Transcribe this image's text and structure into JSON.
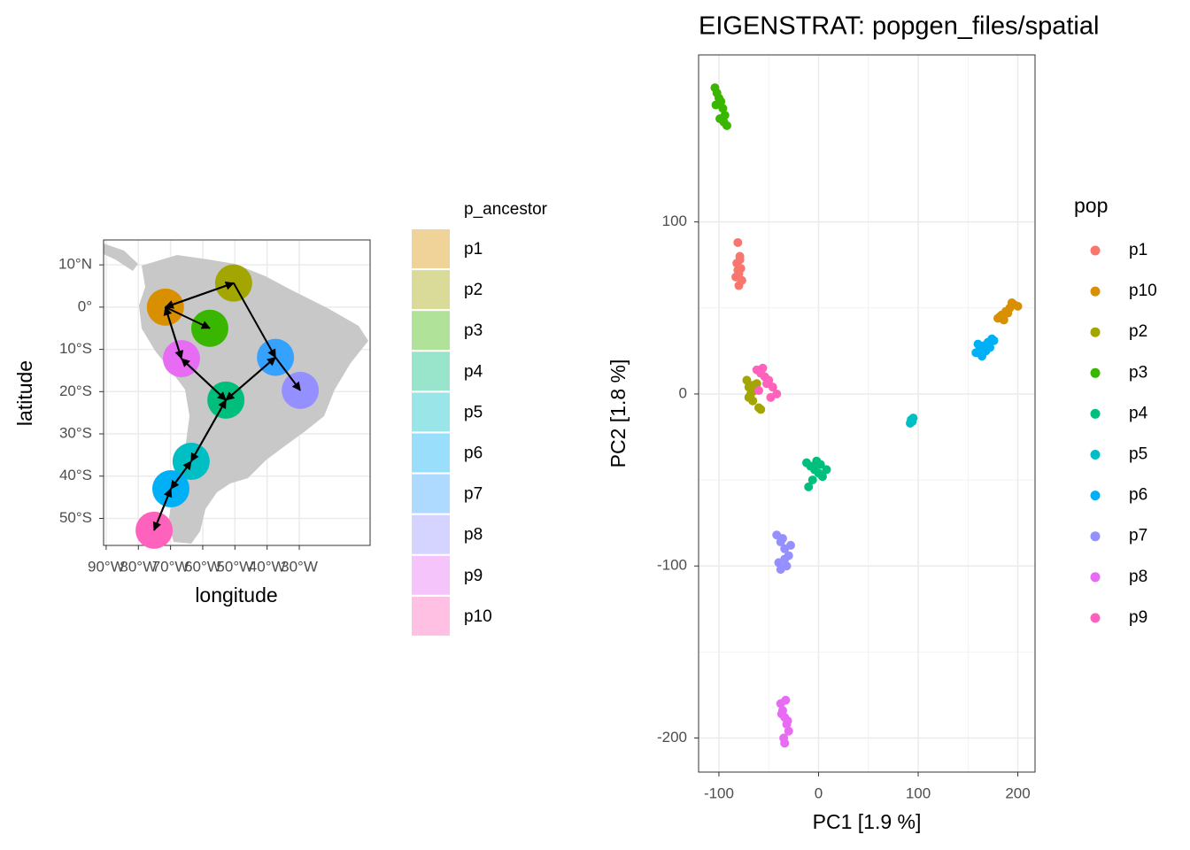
{
  "chart_data": [
    {
      "type": "map",
      "xlabel": "longitude",
      "ylabel": "latitude",
      "legend_title": "p_ancestor",
      "categories": [
        "p1",
        "p2",
        "p3",
        "p4",
        "p5",
        "p6",
        "p7",
        "p8",
        "p9",
        "p10"
      ],
      "x": [
        -71.6,
        -50.4,
        -57.8,
        -52.8,
        -63.6,
        -69.9,
        -37.4,
        -29.7,
        -66.6,
        -75.1
      ],
      "values": [
        0,
        5.7,
        -5,
        -22,
        -36.5,
        -43,
        -11.9,
        -19.7,
        -12.2,
        -52.8
      ],
      "colors": [
        "#D89000",
        "#A3A500",
        "#39B600",
        "#00BF7D",
        "#00BFC4",
        "#00B0F6",
        "#35A2FF",
        "#9590FF",
        "#E76BF3",
        "#FF62BC"
      ],
      "arrows": [
        [
          0,
          1
        ],
        [
          1,
          0
        ],
        [
          0,
          2
        ],
        [
          8,
          0
        ],
        [
          0,
          8
        ],
        [
          8,
          3
        ],
        [
          3,
          8
        ],
        [
          6,
          3
        ],
        [
          3,
          6
        ],
        [
          1,
          6
        ],
        [
          6,
          7
        ],
        [
          3,
          4
        ],
        [
          4,
          3
        ],
        [
          4,
          5
        ],
        [
          5,
          4
        ],
        [
          5,
          9
        ],
        [
          9,
          5
        ]
      ],
      "xlim": [
        -90.8,
        -8
      ],
      "ylim": [
        -56.4,
        15.9
      ],
      "xticks": [
        {
          "value": -90,
          "label": "90°W"
        },
        {
          "value": -80,
          "label": "80°W"
        },
        {
          "value": -70,
          "label": "70°W"
        },
        {
          "value": -60,
          "label": "60°W"
        },
        {
          "value": -50,
          "label": "50°W"
        },
        {
          "value": -40,
          "label": "40°W"
        },
        {
          "value": -30,
          "label": "30°W"
        }
      ],
      "yticks": [
        {
          "value": 10,
          "label": "10°N"
        },
        {
          "value": 0,
          "label": "0°"
        },
        {
          "value": -10,
          "label": "10°S"
        },
        {
          "value": -20,
          "label": "20°S"
        },
        {
          "value": -30,
          "label": "30°S"
        },
        {
          "value": -40,
          "label": "40°S"
        },
        {
          "value": -50,
          "label": "50°S"
        }
      ],
      "grid": true
    },
    {
      "type": "scatter",
      "title": "EIGENSTRAT: popgen_files/spatial",
      "xlabel": "PC1 [1.9 %]",
      "ylabel": "PC2 [1.8 %]",
      "legend_title": "pop",
      "xlim": [
        -120.4,
        217.3
      ],
      "ylim": [
        -219.8,
        197.1
      ],
      "xticks": [
        -100,
        0,
        100,
        200
      ],
      "yticks": [
        -200,
        -100,
        0,
        100
      ],
      "grid": true,
      "minor_grid": true,
      "series": [
        {
          "name": "p1",
          "color": "#F8766D",
          "x": [
            -81,
            -79,
            -82,
            -78,
            -80,
            -83,
            -77,
            -80,
            -79,
            -81
          ],
          "values": [
            88,
            80,
            76,
            73,
            70,
            68,
            66,
            63,
            78,
            72
          ]
        },
        {
          "name": "p10",
          "color": "#D89000",
          "x": [
            180,
            184,
            188,
            192,
            196,
            200,
            186,
            190,
            194,
            182
          ],
          "values": [
            44,
            46,
            48,
            50,
            52,
            51,
            43,
            47,
            53,
            45
          ]
        },
        {
          "name": "p2",
          "color": "#A3A500",
          "x": [
            -72,
            -70,
            -68,
            -66,
            -64,
            -62,
            -60,
            -58,
            -70,
            -66
          ],
          "values": [
            8,
            4,
            0,
            -4,
            2,
            6,
            -8,
            -9,
            -2,
            5
          ]
        },
        {
          "name": "p3",
          "color": "#39B600",
          "x": [
            -104,
            -102,
            -100,
            -98,
            -96,
            -94,
            -92,
            -103,
            -99,
            -95
          ],
          "values": [
            178,
            175,
            172,
            170,
            166,
            162,
            156,
            168,
            160,
            158
          ]
        },
        {
          "name": "p4",
          "color": "#00BF7D",
          "x": [
            -12,
            -8,
            -4,
            0,
            4,
            8,
            -6,
            2,
            -10,
            -2
          ],
          "values": [
            -40,
            -42,
            -44,
            -46,
            -48,
            -44,
            -50,
            -41,
            -54,
            -39
          ]
        },
        {
          "name": "p5",
          "color": "#00BFC4",
          "x": [
            93,
            94,
            92,
            95
          ],
          "values": [
            -15,
            -16,
            -17,
            -14
          ]
        },
        {
          "name": "p6",
          "color": "#00B0F6",
          "x": [
            158,
            162,
            166,
            170,
            174,
            164,
            168,
            172,
            160,
            176
          ],
          "values": [
            24,
            26,
            28,
            30,
            32,
            22,
            25,
            27,
            29,
            31
          ]
        },
        {
          "name": "p7",
          "color": "#9590FF",
          "x": [
            -42,
            -38,
            -34,
            -30,
            -40,
            -36,
            -32,
            -28,
            -38,
            -34
          ],
          "values": [
            -82,
            -86,
            -90,
            -94,
            -98,
            -84,
            -100,
            -88,
            -102,
            -96
          ]
        },
        {
          "name": "p8",
          "color": "#E76BF3",
          "x": [
            -38,
            -36,
            -34,
            -32,
            -30,
            -37,
            -33,
            -35,
            -31,
            -34
          ],
          "values": [
            -180,
            -184,
            -188,
            -192,
            -196,
            -186,
            -178,
            -200,
            -190,
            -203
          ]
        },
        {
          "name": "p9",
          "color": "#FF62BC",
          "x": [
            -62,
            -58,
            -54,
            -50,
            -46,
            -42,
            -56,
            -52,
            -60,
            -48
          ],
          "values": [
            14,
            12,
            10,
            8,
            4,
            0,
            15,
            6,
            2,
            -2
          ]
        }
      ]
    }
  ]
}
